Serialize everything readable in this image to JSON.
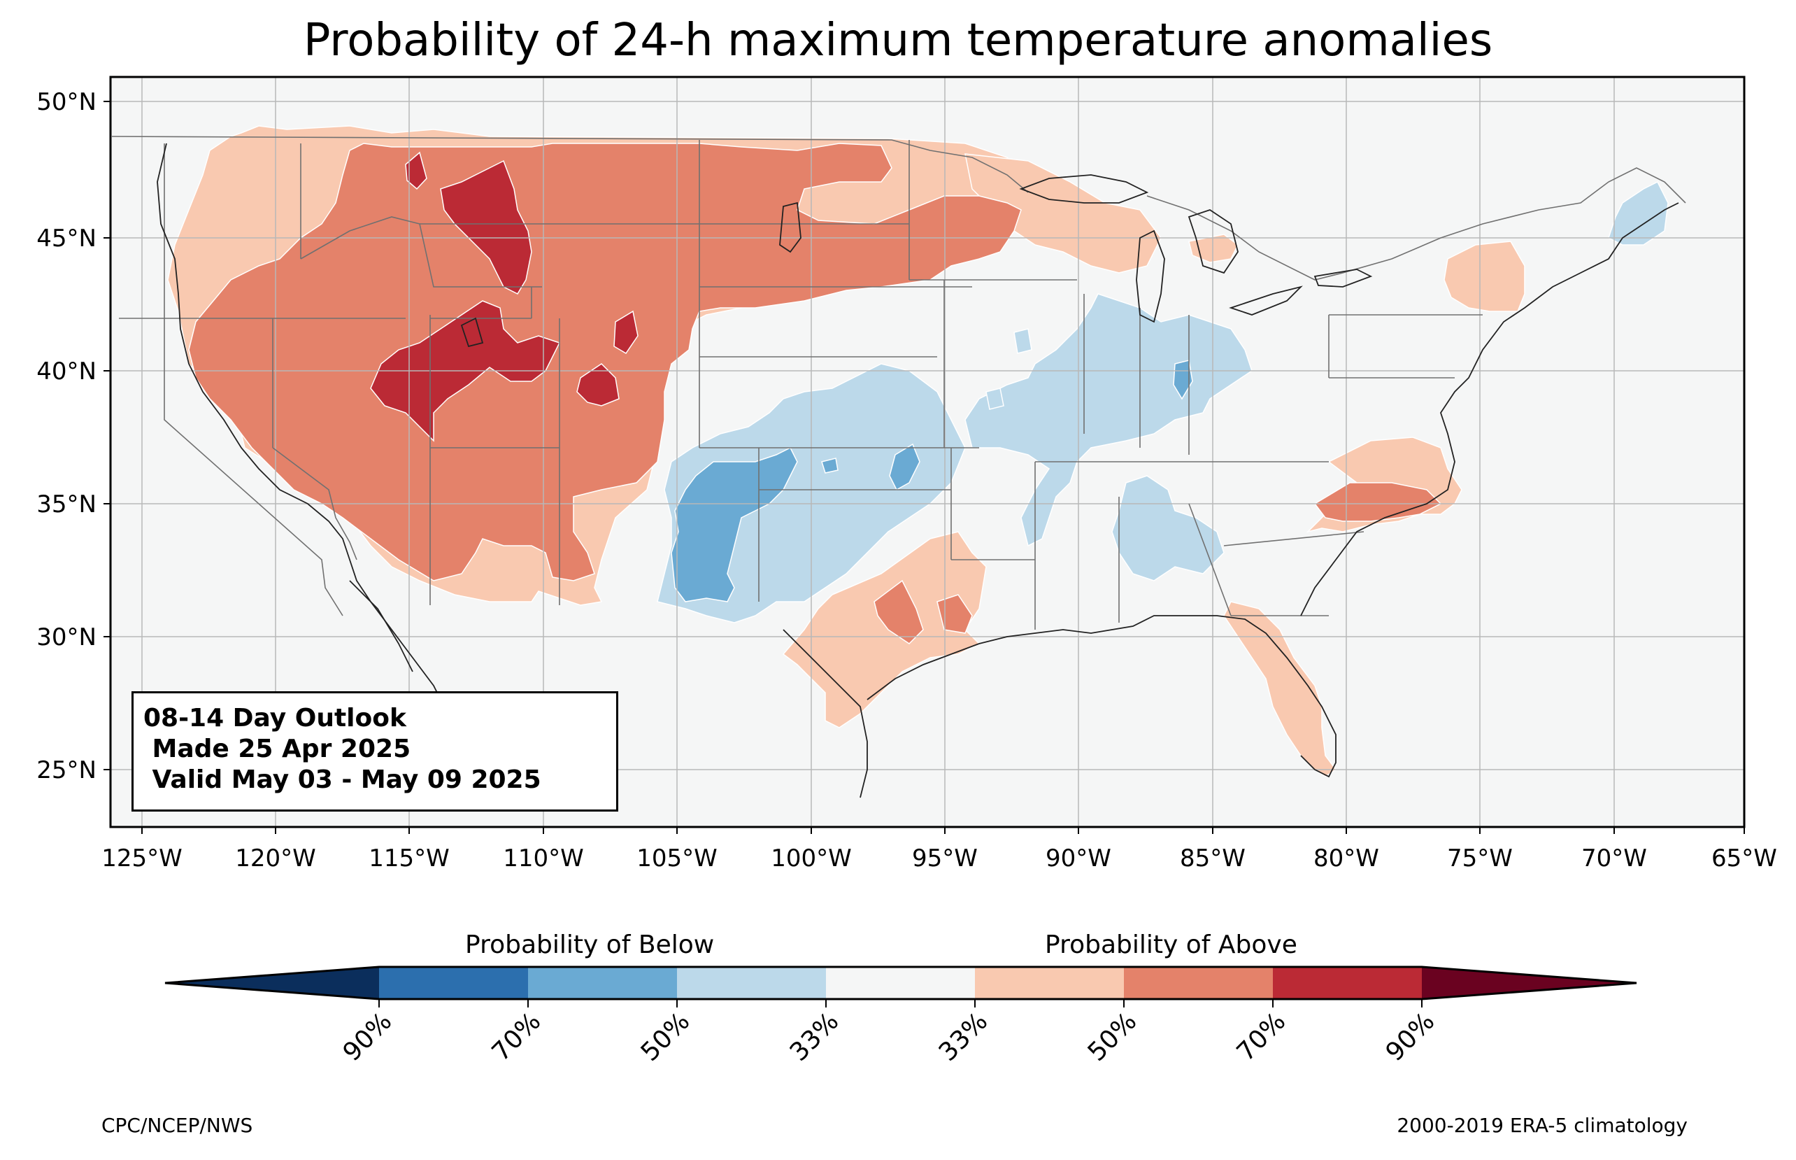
{
  "title": "Probability of 24-h maximum temperature anomalies",
  "map": {
    "lat_labels": [
      "50°N",
      "45°N",
      "40°N",
      "35°N",
      "30°N",
      "25°N"
    ],
    "lon_labels": [
      "125°W",
      "120°W",
      "115°W",
      "110°W",
      "105°W",
      "100°W",
      "95°W",
      "90°W",
      "85°W",
      "80°W",
      "75°W",
      "70°W",
      "65°W"
    ],
    "extent": {
      "lon": [
        -126,
        -65
      ],
      "lat": [
        23,
        51
      ]
    },
    "background_color": "#f5f6f6",
    "features": [
      "US state boundaries",
      "coastlines",
      "country borders",
      "gridlines"
    ]
  },
  "outlook": {
    "line1": "08-14 Day Outlook",
    "line2": " Made 25 Apr 2025",
    "line3": " Valid May 03 - May 09 2025"
  },
  "anomaly_regions": [
    {
      "category": "above 33-50%",
      "color": "#f9c9b0",
      "area": "West, northern Plains edge, Great Lakes, Texas coast, Florida, Carolinas"
    },
    {
      "category": "above 50-70%",
      "color": "#e4826a",
      "area": "West, Great Basin, northern Plains, upper Midwest"
    },
    {
      "category": "above 70-90%",
      "color": "#bb2a35",
      "area": "Idaho/Montana, Utah/Colorado"
    },
    {
      "category": "below 33-50%",
      "color": "#bcd9ea",
      "area": "southern Plains, Ohio Valley, Southeast, Maine"
    },
    {
      "category": "below 50-70%",
      "color": "#6aaad3",
      "area": "New Mexico / West Texas"
    }
  ],
  "colorbar": {
    "below_label": "Probability of Below",
    "above_label": "Probability of Above",
    "colors": [
      "#0b2e5c",
      "#2c6fae",
      "#6aaad3",
      "#bcd9ea",
      "#f5f6f6",
      "#f9c9b0",
      "#e4826a",
      "#bb2a35",
      "#6a0220"
    ],
    "ticks": [
      "90%",
      "70%",
      "50%",
      "33%",
      "33%",
      "50%",
      "70%",
      "90%"
    ]
  },
  "footer": {
    "left": "CPC/NCEP/NWS",
    "right": "2000-2019 ERA-5 climatology"
  }
}
